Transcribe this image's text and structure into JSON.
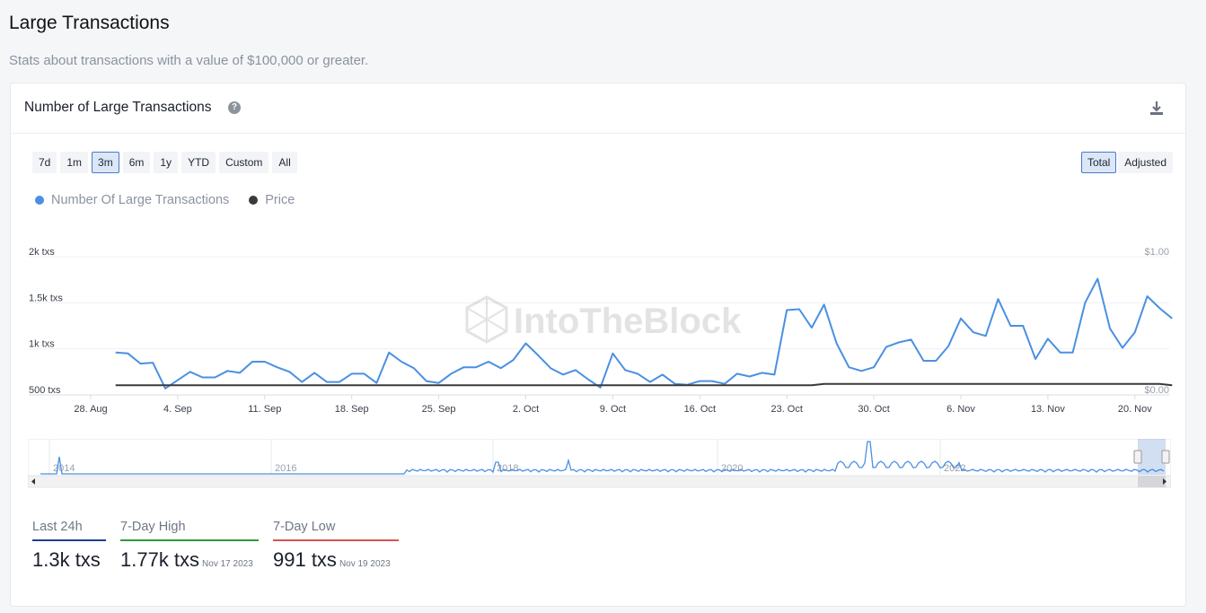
{
  "page": {
    "title": "Large Transactions",
    "subtitle": "Stats about transactions with a value of $100,000 or greater."
  },
  "card": {
    "title": "Number of Large Transactions",
    "help_icon": "question-circle-icon",
    "download_icon": "download-icon"
  },
  "range_buttons": [
    {
      "label": "7d",
      "active": false
    },
    {
      "label": "1m",
      "active": false
    },
    {
      "label": "3m",
      "active": true
    },
    {
      "label": "6m",
      "active": false
    },
    {
      "label": "1y",
      "active": false
    },
    {
      "label": "YTD",
      "active": false
    },
    {
      "label": "Custom",
      "active": false
    },
    {
      "label": "All",
      "active": false
    }
  ],
  "mode_buttons": [
    {
      "label": "Total",
      "active": true
    },
    {
      "label": "Adjusted",
      "active": false
    }
  ],
  "legend": [
    {
      "label": "Number Of Large Transactions",
      "color": "#4a90e2"
    },
    {
      "label": "Price",
      "color": "#3a3a3a"
    }
  ],
  "watermark": "IntoTheBlock",
  "chart_data": {
    "type": "line",
    "x_tick_labels": [
      "28. Aug",
      "4. Sep",
      "11. Sep",
      "18. Sep",
      "25. Sep",
      "2. Oct",
      "9. Oct",
      "16. Oct",
      "23. Oct",
      "30. Oct",
      "6. Nov",
      "13. Nov",
      "20. Nov"
    ],
    "y_left_ticks": [
      "500 txs",
      "1k txs",
      "1.5k txs",
      "2k txs"
    ],
    "y_right_ticks": [
      "$0.00",
      "$1.00"
    ],
    "y_left_range": [
      500,
      2000
    ],
    "y_right_range": [
      0,
      1
    ],
    "x_start": "2023-08-30",
    "series": [
      {
        "values": [
          960,
          950,
          840,
          850,
          570,
          660,
          750,
          690,
          690,
          760,
          740,
          860,
          860,
          800,
          750,
          640,
          740,
          640,
          640,
          730,
          730,
          630,
          960,
          860,
          790,
          650,
          630,
          730,
          800,
          800,
          860,
          790,
          880,
          1060,
          930,
          790,
          720,
          770,
          670,
          580,
          950,
          770,
          730,
          640,
          720,
          620,
          610,
          650,
          650,
          620,
          730,
          700,
          740,
          720,
          1420,
          1430,
          1230,
          1480,
          1060,
          800,
          760,
          800,
          1020,
          1070,
          1100,
          870,
          870,
          1030,
          1330,
          1180,
          1140,
          1540,
          1250,
          1250,
          890,
          1110,
          960,
          960,
          1500,
          1760,
          1220,
          1010,
          1180,
          1570,
          1440,
          1330
        ]
      },
      {
        "values": [
          0.07,
          0.07,
          0.07,
          0.07,
          0.07,
          0.07,
          0.07,
          0.07,
          0.07,
          0.07,
          0.07,
          0.07,
          0.07,
          0.07,
          0.07,
          0.07,
          0.07,
          0.07,
          0.07,
          0.07,
          0.07,
          0.07,
          0.07,
          0.07,
          0.07,
          0.07,
          0.07,
          0.07,
          0.07,
          0.07,
          0.07,
          0.07,
          0.07,
          0.07,
          0.07,
          0.07,
          0.07,
          0.07,
          0.07,
          0.07,
          0.07,
          0.07,
          0.07,
          0.07,
          0.07,
          0.07,
          0.07,
          0.07,
          0.07,
          0.07,
          0.07,
          0.07,
          0.07,
          0.07,
          0.07,
          0.07,
          0.07,
          0.08,
          0.08,
          0.08,
          0.08,
          0.08,
          0.08,
          0.08,
          0.08,
          0.08,
          0.08,
          0.08,
          0.08,
          0.08,
          0.08,
          0.08,
          0.08,
          0.08,
          0.08,
          0.08,
          0.08,
          0.08,
          0.08,
          0.08,
          0.08,
          0.08,
          0.08,
          0.08,
          0.08,
          0.07
        ]
      }
    ]
  },
  "navigator": {
    "year_labels": [
      "2014",
      "2016",
      "2018",
      "2020",
      "2022"
    ]
  },
  "stats": [
    {
      "label": "Last 24h",
      "value": "1.3k txs",
      "date": "",
      "color": "#1a3f8f"
    },
    {
      "label": "7-Day High",
      "value": "1.77k txs",
      "date": "Nov 17 2023",
      "color": "#2e9a3a"
    },
    {
      "label": "7-Day Low",
      "value": "991 txs",
      "date": "Nov 19 2023",
      "color": "#d9534f"
    }
  ]
}
